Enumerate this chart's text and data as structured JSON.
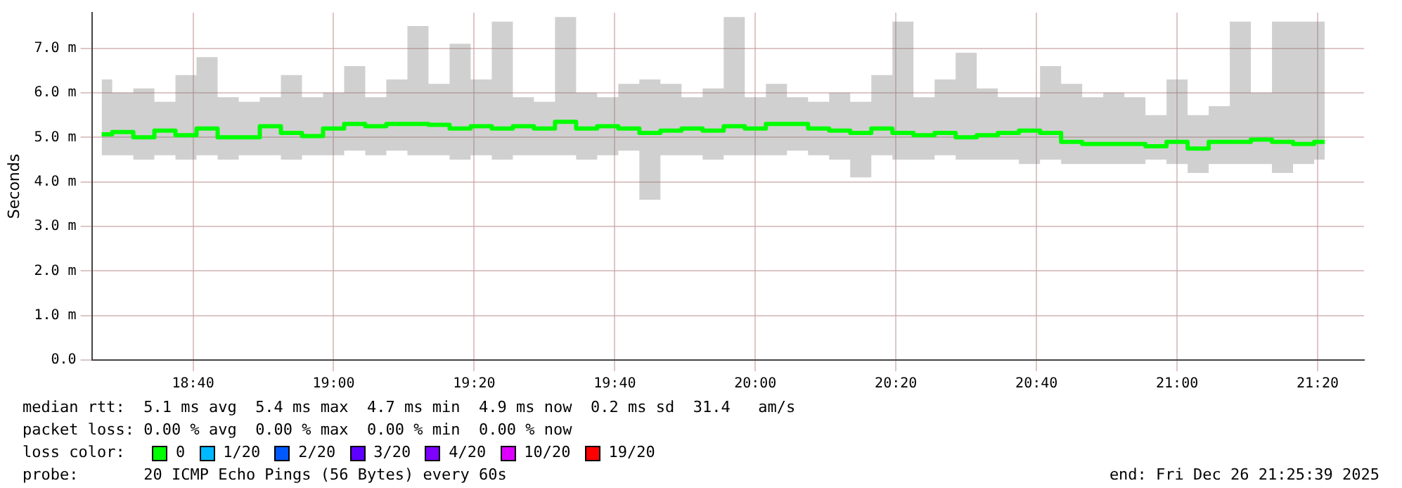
{
  "chart_data": {
    "type": "step",
    "ylabel": "Seconds",
    "legend_title": "loss color:",
    "x": [
      18.45,
      18.5,
      18.55,
      18.6,
      18.65,
      18.7,
      18.75,
      18.8,
      18.85,
      18.9,
      18.95,
      19.0,
      19.05,
      19.1,
      19.15,
      19.2,
      19.25,
      19.3,
      19.35,
      19.4,
      19.45,
      19.5,
      19.55,
      19.6,
      19.65,
      19.7,
      19.75,
      19.8,
      19.85,
      19.9,
      19.95,
      20.0,
      20.05,
      20.1,
      20.15,
      20.2,
      20.25,
      20.3,
      20.35,
      20.4,
      20.45,
      20.5,
      20.55,
      20.6,
      20.65,
      20.7,
      20.75,
      20.8,
      20.85,
      20.9,
      20.95,
      21.0,
      21.05,
      21.1,
      21.15,
      21.2,
      21.25,
      21.3,
      21.35
    ],
    "series": [
      {
        "name": "0",
        "color": "#00ff00",
        "values": [
          5.07,
          5.12,
          5.0,
          5.15,
          5.05,
          5.2,
          5.0,
          5.0,
          5.25,
          5.1,
          5.03,
          5.2,
          5.3,
          5.25,
          5.3,
          5.3,
          5.28,
          5.2,
          5.25,
          5.2,
          5.25,
          5.2,
          5.35,
          5.2,
          5.25,
          5.2,
          5.1,
          5.15,
          5.2,
          5.15,
          5.25,
          5.2,
          5.3,
          5.3,
          5.2,
          5.15,
          5.1,
          5.2,
          5.1,
          5.05,
          5.1,
          5.0,
          5.05,
          5.1,
          5.15,
          5.1,
          4.9,
          4.85,
          4.85,
          4.85,
          4.8,
          4.9,
          4.75,
          4.9,
          4.9,
          4.95,
          4.9,
          4.85,
          4.9
        ],
        "lower": [
          4.6,
          4.6,
          4.5,
          4.6,
          4.5,
          4.6,
          4.5,
          4.6,
          4.6,
          4.5,
          4.6,
          4.6,
          4.7,
          4.6,
          4.7,
          4.6,
          4.6,
          4.5,
          4.6,
          4.5,
          4.6,
          4.6,
          4.6,
          4.5,
          4.6,
          4.7,
          3.6,
          4.6,
          4.6,
          4.5,
          4.6,
          4.6,
          4.6,
          4.7,
          4.6,
          4.5,
          4.1,
          4.6,
          4.5,
          4.5,
          4.6,
          4.5,
          4.5,
          4.5,
          4.4,
          4.5,
          4.4,
          4.4,
          4.4,
          4.4,
          4.5,
          4.4,
          4.2,
          4.4,
          4.4,
          4.4,
          4.2,
          4.4,
          4.5
        ],
        "upper": [
          6.3,
          6.0,
          6.1,
          5.8,
          6.4,
          6.8,
          5.9,
          5.8,
          5.9,
          6.4,
          5.9,
          6.0,
          6.6,
          5.9,
          6.3,
          7.5,
          6.2,
          7.1,
          6.3,
          7.6,
          5.9,
          5.8,
          7.7,
          6.0,
          5.9,
          6.2,
          6.3,
          6.2,
          5.9,
          6.1,
          7.7,
          5.9,
          6.2,
          5.9,
          5.8,
          6.0,
          5.8,
          6.4,
          7.6,
          5.9,
          6.3,
          6.9,
          6.1,
          5.9,
          5.9,
          6.6,
          6.2,
          5.9,
          6.0,
          5.9,
          5.5,
          6.3,
          5.5,
          5.7,
          7.6,
          6.0,
          7.6,
          7.6,
          7.6
        ]
      },
      {
        "name": "1/20",
        "color": "#00b8ff",
        "values": [
          null,
          null,
          null,
          null,
          null,
          null,
          null,
          null,
          null,
          null,
          null,
          null,
          null,
          null,
          null,
          null,
          null,
          null,
          null,
          null,
          null,
          null,
          null,
          null,
          null,
          null,
          null,
          null,
          null,
          null,
          null,
          null,
          null,
          null,
          null,
          null,
          null,
          null,
          null,
          null,
          null,
          null,
          null,
          null,
          null,
          null,
          null,
          null,
          null,
          null,
          null,
          null,
          null,
          null,
          null,
          null,
          null,
          null,
          null
        ]
      },
      {
        "name": "2/20",
        "color": "#0059ff",
        "values": [
          null,
          null,
          null,
          null,
          null,
          null,
          null,
          null,
          null,
          null,
          null,
          null,
          null,
          null,
          null,
          null,
          null,
          null,
          null,
          null,
          null,
          null,
          null,
          null,
          null,
          null,
          null,
          null,
          null,
          null,
          null,
          null,
          null,
          null,
          null,
          null,
          null,
          null,
          null,
          null,
          null,
          null,
          null,
          null,
          null,
          null,
          null,
          null,
          null,
          null,
          null,
          null,
          null,
          null,
          null,
          null,
          null,
          null,
          null
        ]
      },
      {
        "name": "3/20",
        "color": "#5e00ff",
        "values": [
          null,
          null,
          null,
          null,
          null,
          null,
          null,
          null,
          null,
          null,
          null,
          null,
          null,
          null,
          null,
          null,
          null,
          null,
          null,
          null,
          null,
          null,
          null,
          null,
          null,
          null,
          null,
          null,
          null,
          null,
          null,
          null,
          null,
          null,
          null,
          null,
          null,
          null,
          null,
          null,
          null,
          null,
          null,
          null,
          null,
          null,
          null,
          null,
          null,
          null,
          null,
          null,
          null,
          null,
          null,
          null,
          null,
          null,
          null
        ]
      },
      {
        "name": "4/20",
        "color": "#7e00ff",
        "values": [
          null,
          null,
          null,
          null,
          null,
          null,
          null,
          null,
          null,
          null,
          null,
          null,
          null,
          null,
          null,
          null,
          null,
          null,
          null,
          null,
          null,
          null,
          null,
          null,
          null,
          null,
          null,
          null,
          null,
          null,
          null,
          null,
          null,
          null,
          null,
          null,
          null,
          null,
          null,
          null,
          null,
          null,
          null,
          null,
          null,
          null,
          null,
          null,
          null,
          null,
          null,
          null,
          null,
          null,
          null,
          null,
          null,
          null,
          null
        ]
      },
      {
        "name": "10/20",
        "color": "#dd00ff",
        "values": [
          null,
          null,
          null,
          null,
          null,
          null,
          null,
          null,
          null,
          null,
          null,
          null,
          null,
          null,
          null,
          null,
          null,
          null,
          null,
          null,
          null,
          null,
          null,
          null,
          null,
          null,
          null,
          null,
          null,
          null,
          null,
          null,
          null,
          null,
          null,
          null,
          null,
          null,
          null,
          null,
          null,
          null,
          null,
          null,
          null,
          null,
          null,
          null,
          null,
          null,
          null,
          null,
          null,
          null,
          null,
          null,
          null,
          null,
          null
        ]
      },
      {
        "name": "19/20",
        "color": "#ff0000",
        "values": [
          null,
          null,
          null,
          null,
          null,
          null,
          null,
          null,
          null,
          null,
          null,
          null,
          null,
          null,
          null,
          null,
          null,
          null,
          null,
          null,
          null,
          null,
          null,
          null,
          null,
          null,
          null,
          null,
          null,
          null,
          null,
          null,
          null,
          null,
          null,
          null,
          null,
          null,
          null,
          null,
          null,
          null,
          null,
          null,
          null,
          null,
          null,
          null,
          null,
          null,
          null,
          null,
          null,
          null,
          null,
          null,
          null,
          null,
          null
        ]
      }
    ],
    "xlim": [
      18.4267,
      21.4433
    ],
    "xticks": [
      {
        "value": 18.6667,
        "label": "18:40"
      },
      {
        "value": 19,
        "label": "19:00"
      },
      {
        "value": 19.3333,
        "label": "19:20"
      },
      {
        "value": 19.6667,
        "label": "19:40"
      },
      {
        "value": 20,
        "label": "20:00"
      },
      {
        "value": 20.3333,
        "label": "20:20"
      },
      {
        "value": 20.6667,
        "label": "20:40"
      },
      {
        "value": 21,
        "label": "21:00"
      },
      {
        "value": 21.3333,
        "label": "21:20"
      }
    ],
    "ylim": [
      0,
      7.8
    ],
    "yticks": [
      {
        "value": 0,
        "label": "0.0"
      },
      {
        "value": 1,
        "label": "1.0 m"
      },
      {
        "value": 2,
        "label": "2.0 m"
      },
      {
        "value": 3,
        "label": "3.0 m"
      },
      {
        "value": 4,
        "label": "4.0 m"
      },
      {
        "value": 5,
        "label": "5.0 m"
      },
      {
        "value": 6,
        "label": "6.0 m"
      },
      {
        "value": 7,
        "label": "7.0 m"
      }
    ],
    "grid": true,
    "legend": "bottom",
    "annotations": [
      "median rtt:  5.1 ms avg  5.4 ms max  4.7 ms min  4.9 ms now  0.2 ms sd  31.4   am/s",
      "packet loss: 0.00 % avg  0.00 % max  0.00 % min  0.00 % now",
      "probe:       20 ICMP Echo Pings (56 Bytes) every 60s",
      "end: Fri Dec 26 21:25:39 2025"
    ]
  }
}
